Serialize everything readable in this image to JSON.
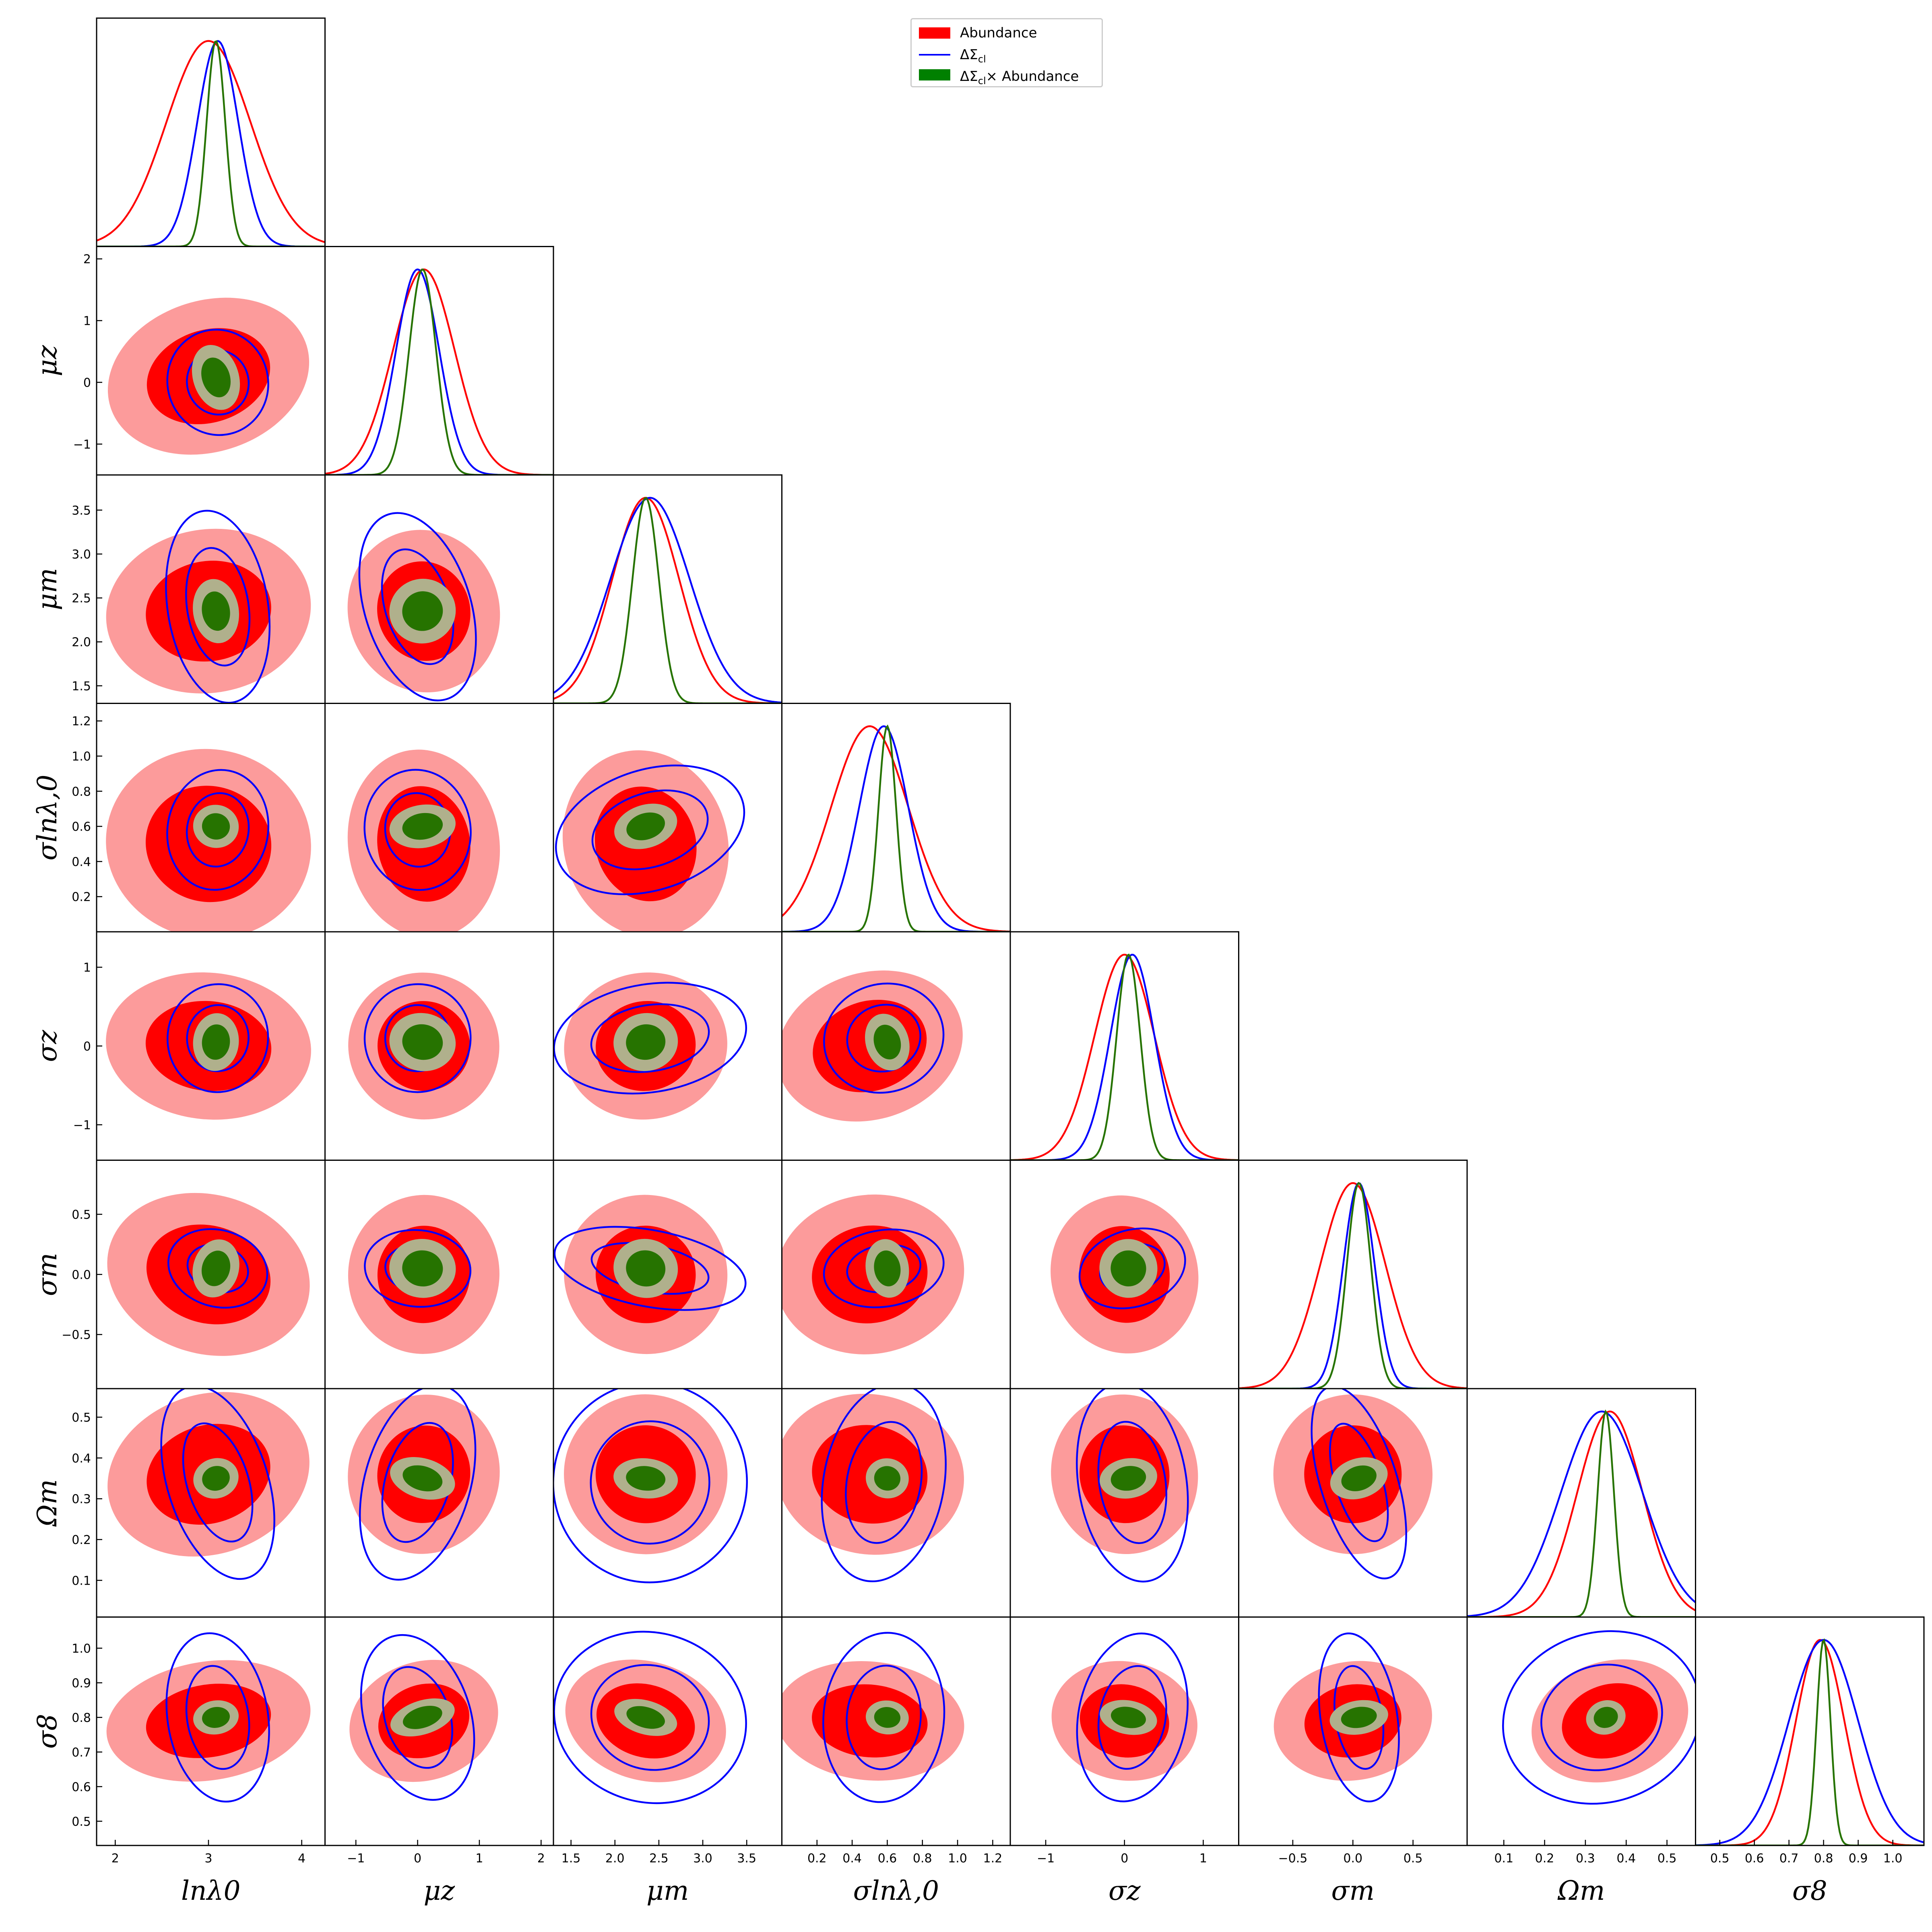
{
  "chart_data": {
    "type": "corner",
    "parameters": [
      {
        "key": "lnlambda0",
        "label": "lnλ0",
        "ticks": [
          2,
          3,
          4
        ],
        "range": [
          1.8,
          4.25
        ]
      },
      {
        "key": "mu_z",
        "label": "μz",
        "ticks": [
          -1,
          0,
          1,
          2
        ],
        "range": [
          -1.5,
          2.2
        ]
      },
      {
        "key": "mu_m",
        "label": "μm",
        "ticks": [
          1.5,
          2.0,
          2.5,
          3.0,
          3.5
        ],
        "range": [
          1.3,
          3.9
        ]
      },
      {
        "key": "sigma_lnlambda0",
        "label": "σlnλ,0",
        "ticks": [
          0.2,
          0.4,
          0.6,
          0.8,
          1.0,
          1.2
        ],
        "range": [
          0.0,
          1.3
        ]
      },
      {
        "key": "sigma_z",
        "label": "σz",
        "ticks": [
          -1,
          0,
          1
        ],
        "range": [
          -1.45,
          1.45
        ]
      },
      {
        "key": "sigma_m",
        "label": "σm",
        "ticks": [
          -0.5,
          0.0,
          0.5
        ],
        "range": [
          -0.95,
          0.95
        ]
      },
      {
        "key": "Omega_m",
        "label": "Ωm",
        "ticks": [
          0.1,
          0.2,
          0.3,
          0.4,
          0.5
        ],
        "range": [
          0.01,
          0.57
        ]
      },
      {
        "key": "sigma_8",
        "label": "σ8",
        "ticks": [
          0.5,
          0.6,
          0.7,
          0.8,
          0.9,
          1.0
        ],
        "range": [
          0.43,
          1.09
        ]
      }
    ],
    "series": [
      {
        "name": "Abundance",
        "style": "filled",
        "color": "#ff0000",
        "outer_color": "#fc9b9b",
        "means": [
          3.0,
          0.1,
          2.35,
          0.5,
          0.0,
          0.0,
          0.36,
          0.79
        ],
        "sigmas": [
          0.45,
          0.5,
          0.38,
          0.22,
          0.38,
          0.27,
          0.08,
          0.07
        ]
      },
      {
        "name": "ΔΣcl",
        "style": "line",
        "color": "#0000ff",
        "means": [
          3.1,
          0.0,
          2.4,
          0.58,
          0.1,
          0.05,
          0.34,
          0.8
        ],
        "sigmas": [
          0.22,
          0.35,
          0.45,
          0.14,
          0.28,
          0.13,
          0.1,
          0.1
        ]
      },
      {
        "name": "ΔΣcl× Abundance",
        "style": "filled",
        "color": "#267300",
        "outer_color": "#b0b08c",
        "means": [
          3.08,
          0.08,
          2.35,
          0.6,
          0.05,
          0.05,
          0.35,
          0.8
        ],
        "sigmas": [
          0.1,
          0.22,
          0.15,
          0.05,
          0.15,
          0.1,
          0.02,
          0.02
        ]
      }
    ],
    "legend_position": "top-center"
  },
  "legend": {
    "abundance": "Abundance",
    "dsigma_main": "ΔΣ",
    "dsigma_sub": "cl",
    "combined_mid": "×",
    "combined_tail": "Abundance"
  }
}
